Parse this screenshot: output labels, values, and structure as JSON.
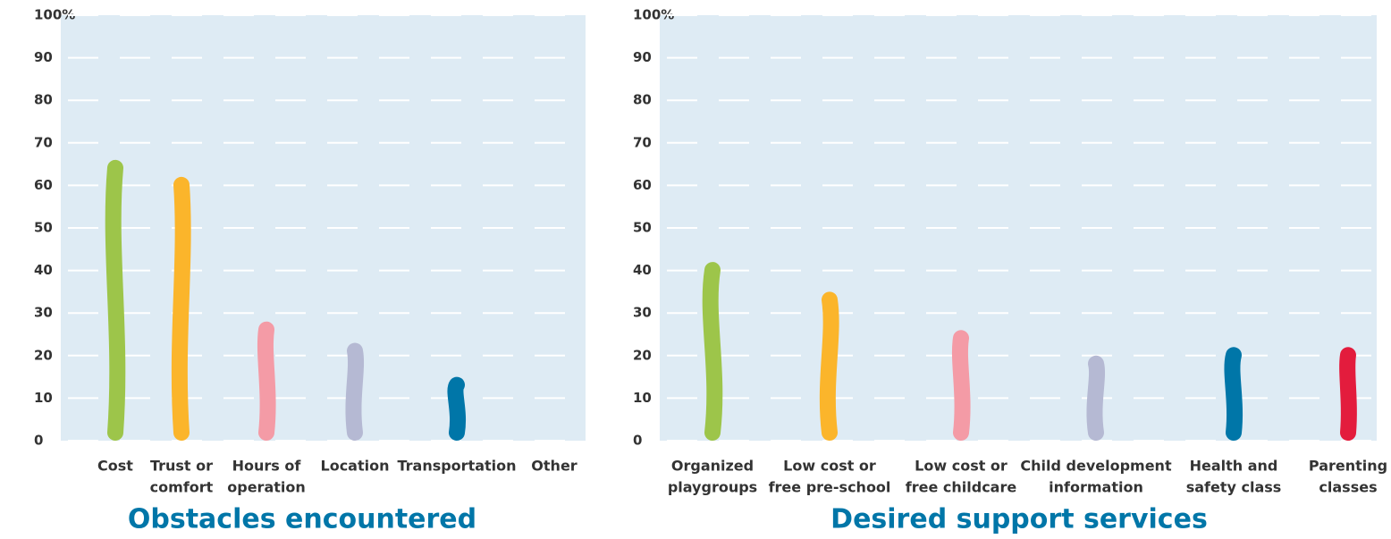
{
  "chart_data": [
    {
      "type": "bar",
      "title": "Obstacles encountered",
      "categories": [
        [
          "Cost"
        ],
        [
          "Trust or",
          "comfort"
        ],
        [
          "Hours of",
          "operation"
        ],
        [
          "Location"
        ],
        [
          "Transportation"
        ],
        [
          "Other"
        ]
      ],
      "values": [
        66,
        62,
        28,
        23,
        15,
        0
      ],
      "colors": [
        "#9dc54a",
        "#fbb52b",
        "#f49ba6",
        "#b5b9d3",
        "#0076a8",
        "#e31c3d"
      ],
      "ylim": [
        0,
        100
      ],
      "yticks": [
        0,
        10,
        20,
        30,
        40,
        50,
        60,
        70,
        80,
        90,
        {
          "value": 100,
          "label": "100%"
        }
      ],
      "grid": true
    },
    {
      "type": "bar",
      "title": "Desired support services",
      "categories": [
        [
          "Organized",
          "playgroups"
        ],
        [
          "Low cost or",
          "free pre-school"
        ],
        [
          "Low cost or",
          "free childcare"
        ],
        [
          "Child development",
          "information"
        ],
        [
          "Health and",
          "safety class"
        ],
        [
          "Parenting",
          "classes"
        ]
      ],
      "values": [
        42,
        35,
        26,
        20,
        22,
        22
      ],
      "colors": [
        "#9dc54a",
        "#fbb52b",
        "#f49ba6",
        "#b5b9d3",
        "#0076a8",
        "#e31c3d"
      ],
      "ylim": [
        0,
        100
      ],
      "yticks": [
        0,
        10,
        20,
        30,
        40,
        50,
        60,
        70,
        80,
        90,
        {
          "value": 100,
          "label": "100%"
        }
      ],
      "grid": true
    }
  ]
}
